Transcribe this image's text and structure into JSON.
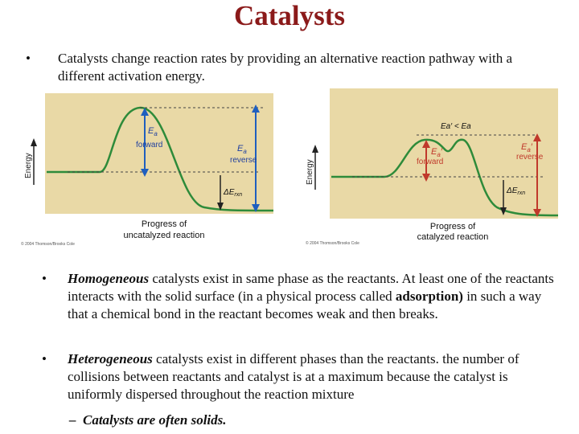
{
  "title": "Catalysts",
  "bullet1": {
    "marker": "•",
    "text": "Catalysts change reaction rates by providing an alternative reaction pathway with a different activation energy."
  },
  "diagram_uncatalyzed": {
    "ylabel": "Energy",
    "ea_label": "E",
    "ea_sub": "a",
    "forward_label": "forward",
    "reverse_ea": "E",
    "reverse_sub": "a",
    "reverse_label": "reverse",
    "delta_e": "ΔE",
    "delta_sub": "rxn",
    "caption_line1": "Progress of",
    "caption_line2": "uncatalyzed reaction",
    "copyright": "© 2004 Thomson/Brooks Cole",
    "colors": {
      "background": "#e9d9a6",
      "curve": "#2e8b3a",
      "arrow": "#1f5fbf",
      "text": "#1f3f9f"
    }
  },
  "diagram_catalyzed": {
    "ylabel": "Energy",
    "compare_label": "Ea′ < Ea",
    "ea_label": "E",
    "ea_sub": "a",
    "ea_prime": "′",
    "forward_label": "forward",
    "reverse_ea": "E",
    "reverse_sub": "a",
    "reverse_label": "reverse",
    "delta_e": "ΔE",
    "delta_sub": "rxn",
    "caption_line1": "Progress of",
    "caption_line2": "catalyzed reaction",
    "copyright": "© 2004 Thomson/Brooks Cole",
    "colors": {
      "background": "#e9d9a6",
      "curve": "#2e8b3a",
      "forward_arrow": "#c0392b",
      "reverse_arrow": "#c0392b",
      "text": "#c0392b"
    }
  },
  "bullet2": {
    "marker": "•",
    "term": "Homogeneous",
    "rest_a": " catalysts exist in same phase as the reactants. At least one of the reactants interacts with the solid surface (in a physical process called ",
    "strong": "adsorption)",
    "rest_b": " in such a way that a chemical bond in the reactant becomes weak and then breaks."
  },
  "bullet3": {
    "marker": "•",
    "term": "Heterogeneous",
    "rest": " catalysts exist in different phases than the reactants. the number of collisions between reactants and catalyst is at a maximum because the catalyst is uniformly dispersed throughout the reaction mixture"
  },
  "sub_bullet": {
    "marker": "–",
    "text": "Catalysts are often solids."
  }
}
